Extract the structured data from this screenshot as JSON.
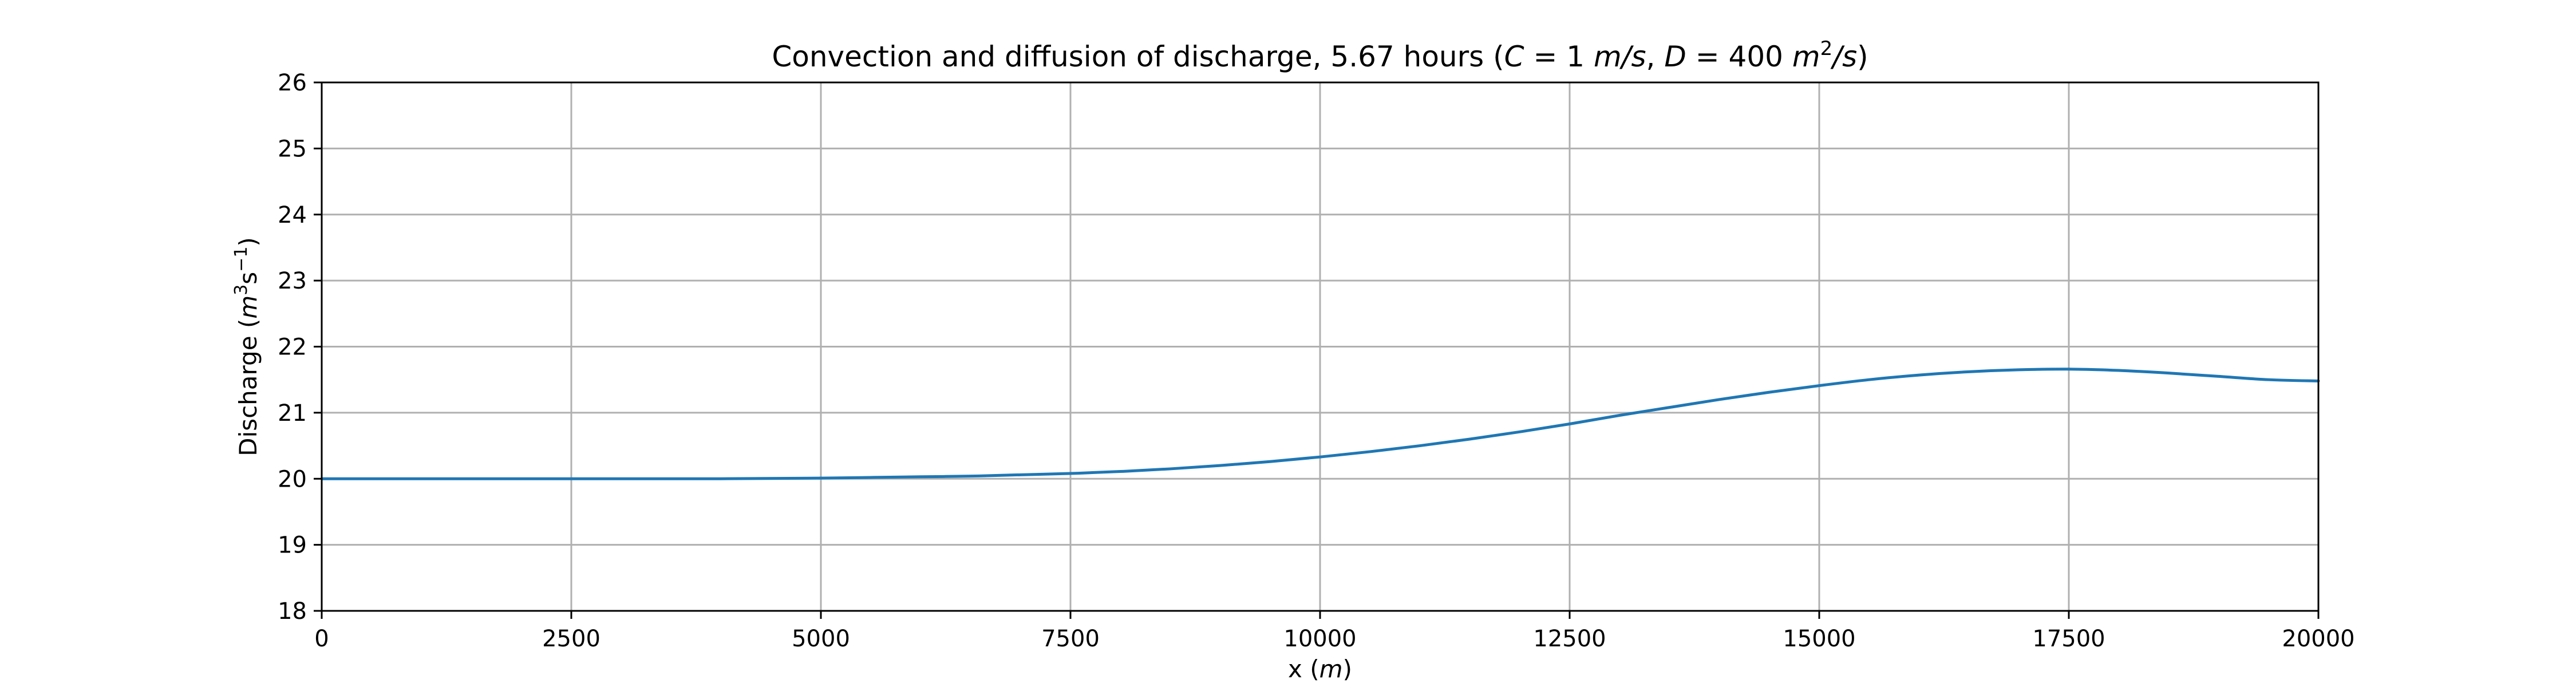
{
  "chart_data": {
    "type": "line",
    "title": "Convection and diffusion of discharge, 5.67 hours (C = 1 m/s, D = 400 m²/s)",
    "title_parts": {
      "prefix": "Convection and diffusion of discharge, 5.67 hours (",
      "c_var": "C",
      "c_eq": " = 1 ",
      "c_unit": "m/s",
      "sep": ", ",
      "d_var": "D",
      "d_eq": " = 400 ",
      "d_unit_m": "m",
      "d_unit_exp": "2",
      "d_unit_s": "/s",
      "suffix": ")"
    },
    "xlabel": "x (m)",
    "xlabel_parts": {
      "prefix": "x (",
      "unit": "m",
      "suffix": ")"
    },
    "ylabel": "Discharge (m³s⁻¹)",
    "ylabel_parts": {
      "prefix": "Discharge (",
      "m": "m",
      "m_exp": "3",
      "s": "s",
      "s_exp": "−1",
      "suffix": ")"
    },
    "xlim": [
      0,
      20000
    ],
    "ylim": [
      18,
      26
    ],
    "xticks": [
      0,
      2500,
      5000,
      7500,
      10000,
      12500,
      15000,
      17500,
      20000
    ],
    "yticks": [
      18,
      19,
      20,
      21,
      22,
      23,
      24,
      25,
      26
    ],
    "grid": true,
    "series_color": "#1f77b4",
    "series": [
      {
        "x": [
          0,
          2500,
          4000,
          5000,
          5500,
          6000,
          6500,
          7000,
          7500,
          8000,
          8500,
          9000,
          9500,
          10000,
          10500,
          11000,
          11500,
          12000,
          12500,
          13000,
          13500,
          14000,
          14500,
          15000,
          15500,
          16000,
          16500,
          17000,
          17500,
          18000,
          18500,
          19000,
          19500,
          20000
        ],
        "y": [
          20.0,
          20.0,
          20.0,
          20.01,
          20.02,
          20.03,
          20.04,
          20.06,
          20.08,
          20.11,
          20.15,
          20.2,
          20.26,
          20.33,
          20.41,
          20.5,
          20.6,
          20.71,
          20.83,
          20.96,
          21.08,
          21.2,
          21.31,
          21.41,
          21.5,
          21.57,
          21.62,
          21.65,
          21.66,
          21.64,
          21.6,
          21.55,
          21.5,
          21.48
        ]
      }
    ]
  }
}
